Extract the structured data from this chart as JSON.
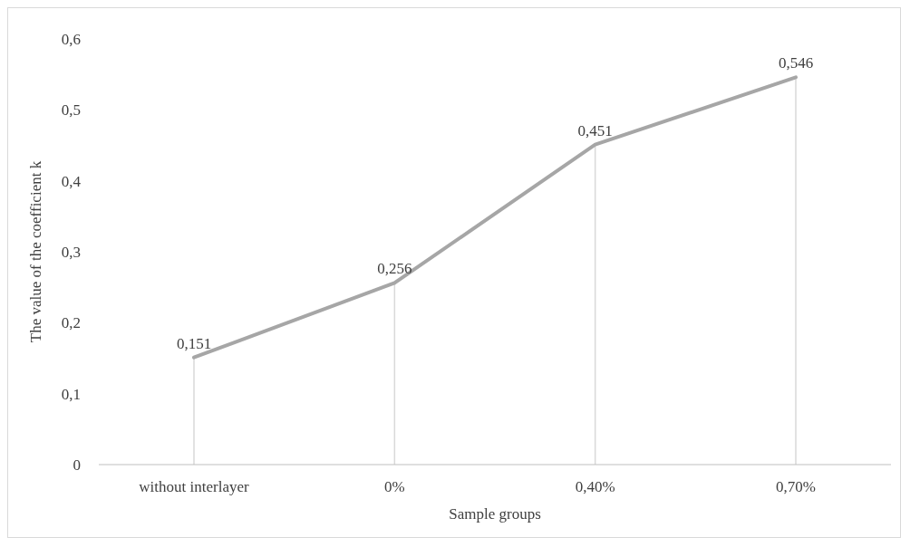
{
  "chart_data": {
    "type": "line",
    "xlabel": "Sample groups",
    "ylabel": "The value of the coefficient k",
    "categories": [
      "without  interlayer",
      "0%",
      "0,40%",
      "0,70%"
    ],
    "series": [
      {
        "color": "#a6a6a6",
        "values": [
          0.151,
          0.256,
          0.451,
          0.546
        ],
        "value_labels": [
          "0,151",
          "0,256",
          "0,451",
          "0,546"
        ]
      }
    ],
    "ylim": [
      0,
      0.6
    ],
    "yticks": [
      0,
      {
        "value": 0.1,
        "label": "0,1"
      },
      {
        "value": 0.2,
        "label": "0,2"
      },
      {
        "value": 0.3,
        "label": "0,3"
      },
      {
        "value": 0.4,
        "label": "0,4"
      },
      {
        "value": 0.5,
        "label": "0,5"
      },
      {
        "value": 0.6,
        "label": "0,6"
      }
    ],
    "grid": "x",
    "marker": "none",
    "line_style": "solid"
  }
}
